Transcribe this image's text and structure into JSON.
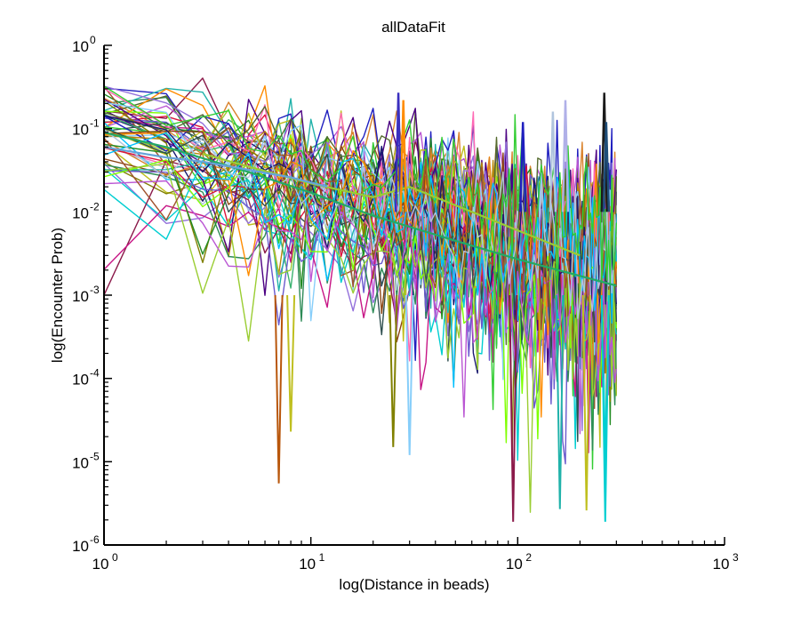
{
  "chart_data": {
    "type": "line",
    "title": "allDataFit",
    "xlabel": "log(Distance in beads)",
    "ylabel": "log(Encounter Prob)",
    "xscale": "log",
    "yscale": "log",
    "xlim": [
      1,
      1000
    ],
    "ylim": [
      1e-06,
      1
    ],
    "grid": false,
    "legend": "none",
    "x_ticks": [
      {
        "value": 1,
        "base": "10",
        "exp": "0"
      },
      {
        "value": 10,
        "base": "10",
        "exp": "1"
      },
      {
        "value": 100,
        "base": "10",
        "exp": "2"
      },
      {
        "value": 1000,
        "base": "10",
        "exp": "3"
      }
    ],
    "y_ticks": [
      {
        "value": 1e-06,
        "base": "10",
        "exp": "-6"
      },
      {
        "value": 1e-05,
        "base": "10",
        "exp": "-5"
      },
      {
        "value": 0.0001,
        "base": "10",
        "exp": "-4"
      },
      {
        "value": 0.001,
        "base": "10",
        "exp": "-3"
      },
      {
        "value": 0.01,
        "base": "10",
        "exp": "-2"
      },
      {
        "value": 0.1,
        "base": "10",
        "exp": "-1"
      },
      {
        "value": 1,
        "base": "10",
        "exp": "0"
      }
    ],
    "noisy_series_count": 60,
    "noisy_x_range": [
      1,
      300
    ],
    "series_colors": [
      "#1f1fbf",
      "#2e8b57",
      "#bfbf1f",
      "#8b1a4a",
      "#d9822b",
      "#3cb371",
      "#4b0082",
      "#c71585",
      "#20b2aa",
      "#808000",
      "#9370db",
      "#dc143c",
      "#00ced1",
      "#228b22",
      "#b8860b",
      "#6a5acd",
      "#ff69b4",
      "#556b2f",
      "#87cefa",
      "#8b4513",
      "#7fff00",
      "#191970",
      "#ff8c00",
      "#2f4f4f",
      "#9acd32",
      "#ba55d3",
      "#a0522d",
      "#00bfff",
      "#b0c4de",
      "#32cd32"
    ],
    "series": [
      {
        "x": [
          1,
          2,
          5,
          10,
          20,
          50,
          100,
          300
        ],
        "y": [
          0.09,
          0.06,
          0.03,
          0.017,
          0.009,
          0.0045,
          0.0027,
          0.0013
        ],
        "color": "#22aa66"
      },
      {
        "x": [
          3,
          5,
          10,
          20,
          30,
          50,
          100,
          200
        ],
        "y": [
          0.05,
          0.035,
          0.022,
          0.015,
          0.02,
          0.012,
          0.006,
          0.003
        ],
        "color": "#99cc33"
      },
      {
        "x": [
          1,
          2,
          3,
          5,
          8,
          12
        ],
        "y": [
          0.06,
          0.045,
          0.04,
          0.032,
          0.026,
          0.02
        ],
        "color": "#66a3d9"
      }
    ],
    "spikes": [
      {
        "x": 26.5,
        "y": 0.27,
        "color": "#3a2fbf"
      },
      {
        "x": 28,
        "y": 0.22,
        "color": "#ff8c00"
      },
      {
        "x": 106,
        "y": 0.12,
        "color": "#1f1fbf"
      },
      {
        "x": 148,
        "y": 0.16,
        "color": "#b0c4de"
      },
      {
        "x": 170,
        "y": 0.22,
        "color": "#b0b0e8"
      },
      {
        "x": 262,
        "y": 0.27,
        "color": "#1a1a1a"
      },
      {
        "x": 268,
        "y": 0.12,
        "color": "#1f4e79"
      }
    ],
    "deep_dips": [
      {
        "x": 7,
        "y": 5.5e-06,
        "color": "#b8560b"
      },
      {
        "x": 8,
        "y": 2.3e-05,
        "color": "#bfbf1f"
      },
      {
        "x": 25,
        "y": 1.5e-05,
        "color": "#808000"
      },
      {
        "x": 30,
        "y": 1.2e-05,
        "color": "#87cefa"
      },
      {
        "x": 95,
        "y": 1.9e-06,
        "color": "#8b1a4a"
      },
      {
        "x": 160,
        "y": 2.7e-06,
        "color": "#20b2aa"
      },
      {
        "x": 215,
        "y": 2.6e-06,
        "color": "#bfbf1f"
      },
      {
        "x": 265,
        "y": 1.9e-06,
        "color": "#00ced1"
      }
    ]
  }
}
